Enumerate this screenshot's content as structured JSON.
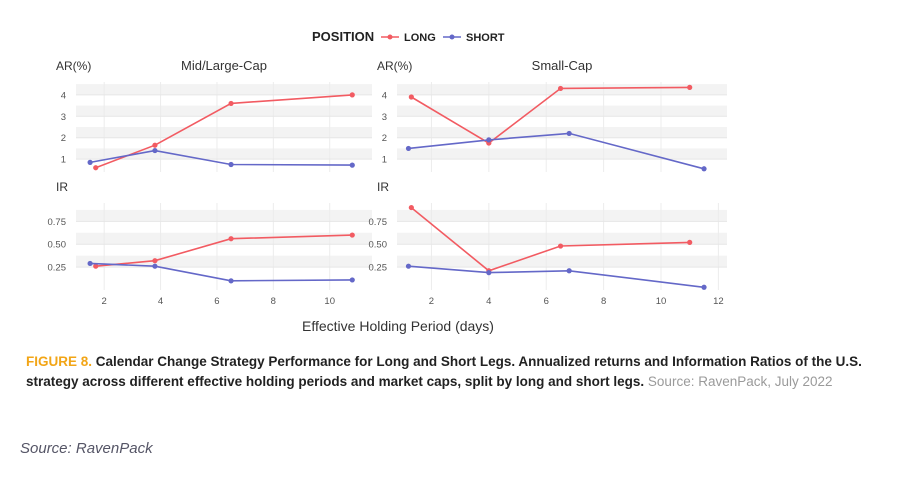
{
  "legend": {
    "title": "POSITION",
    "entries": [
      {
        "name": "LONG",
        "color": "#f25b62"
      },
      {
        "name": "SHORT",
        "color": "#6468c8"
      }
    ]
  },
  "xlabel": "Effective Holding Period (days)",
  "chart_data": [
    {
      "type": "line",
      "title": "Mid/Large-Cap",
      "ylabel": "AR(%)",
      "xlim": [
        1,
        11.5
      ],
      "ylim": [
        0.4,
        4.6
      ],
      "yticks": [
        "1",
        "2",
        "3",
        "4"
      ],
      "ytick_values": [
        1,
        2,
        3,
        4
      ],
      "series": [
        {
          "name": "LONG",
          "color": "#f25b62",
          "x": [
            1.7,
            3.8,
            6.5,
            10.8
          ],
          "y": [
            0.6,
            1.65,
            3.6,
            4.0
          ]
        },
        {
          "name": "SHORT",
          "color": "#6468c8",
          "x": [
            1.5,
            3.8,
            6.5,
            10.8
          ],
          "y": [
            0.85,
            1.4,
            0.75,
            0.72
          ]
        }
      ]
    },
    {
      "type": "line",
      "title": "Small-Cap",
      "ylabel": "AR(%)",
      "xlim": [
        0.8,
        12.3
      ],
      "ylim": [
        0.4,
        4.6
      ],
      "yticks": [
        "1",
        "2",
        "3",
        "4"
      ],
      "ytick_values": [
        1,
        2,
        3,
        4
      ],
      "series": [
        {
          "name": "LONG",
          "color": "#f25b62",
          "x": [
            1.3,
            4.0,
            6.5,
            11.0
          ],
          "y": [
            3.9,
            1.75,
            4.3,
            4.35
          ]
        },
        {
          "name": "SHORT",
          "color": "#6468c8",
          "x": [
            1.2,
            4.0,
            6.8,
            11.5
          ],
          "y": [
            1.5,
            1.9,
            2.2,
            0.55
          ]
        }
      ]
    },
    {
      "type": "line",
      "title": "",
      "ylabel": "IR",
      "xlim": [
        1,
        11.5
      ],
      "ylim": [
        0.0,
        0.95
      ],
      "yticks": [
        "0.25",
        "0.50",
        "0.75"
      ],
      "ytick_values": [
        0.25,
        0.5,
        0.75
      ],
      "xticks": [
        "2",
        "4",
        "6",
        "8",
        "10"
      ],
      "xtick_values": [
        2,
        4,
        6,
        8,
        10
      ],
      "series": [
        {
          "name": "LONG",
          "color": "#f25b62",
          "x": [
            1.7,
            3.8,
            6.5,
            10.8
          ],
          "y": [
            0.26,
            0.32,
            0.56,
            0.6
          ]
        },
        {
          "name": "SHORT",
          "color": "#6468c8",
          "x": [
            1.5,
            3.8,
            6.5,
            10.8
          ],
          "y": [
            0.29,
            0.26,
            0.1,
            0.11
          ]
        }
      ]
    },
    {
      "type": "line",
      "title": "",
      "ylabel": "IR",
      "xlim": [
        0.8,
        12.3
      ],
      "ylim": [
        0.0,
        0.95
      ],
      "yticks": [
        "0.25",
        "0.50",
        "0.75"
      ],
      "ytick_values": [
        0.25,
        0.5,
        0.75
      ],
      "xticks": [
        "2",
        "4",
        "6",
        "8",
        "10",
        "12"
      ],
      "xtick_values": [
        2,
        4,
        6,
        8,
        10,
        12
      ],
      "series": [
        {
          "name": "LONG",
          "color": "#f25b62",
          "x": [
            1.3,
            4.0,
            6.5,
            11.0
          ],
          "y": [
            0.9,
            0.21,
            0.48,
            0.52
          ]
        },
        {
          "name": "SHORT",
          "color": "#6468c8",
          "x": [
            1.2,
            4.0,
            6.8,
            11.5
          ],
          "y": [
            0.26,
            0.19,
            0.21,
            0.03
          ]
        }
      ]
    }
  ],
  "caption": {
    "figure_label": "FIGURE 8.",
    "text": "Calendar Change Strategy Performance for Long and Short Legs. Annualized returns and Information Ratios of the U.S. strategy across different effective holding periods and market caps, split by long and short legs.",
    "source": "Source: RavenPack, July 2022"
  },
  "footer_source": "Source: RavenPack"
}
